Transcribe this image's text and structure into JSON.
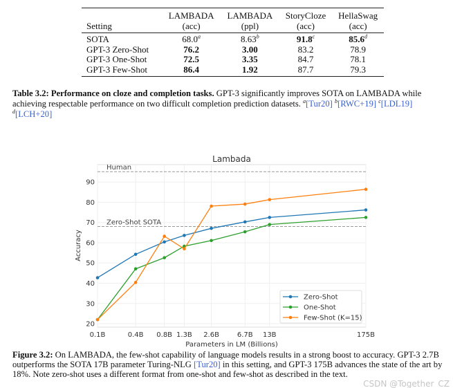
{
  "table": {
    "headers": [
      {
        "top": "",
        "bottom": "Setting"
      },
      {
        "top": "LAMBADA",
        "bottom": "(acc)"
      },
      {
        "top": "LAMBADA",
        "bottom": "(ppl)"
      },
      {
        "top": "StoryCloze",
        "bottom": "(acc)"
      },
      {
        "top": "HellaSwag",
        "bottom": "(acc)"
      }
    ],
    "rows": [
      {
        "setting": "SOTA",
        "cells": [
          {
            "v": "68.0",
            "sup": "a",
            "bold": false
          },
          {
            "v": "8.63",
            "sup": "b",
            "bold": false
          },
          {
            "v": "91.8",
            "sup": "c",
            "bold": true
          },
          {
            "v": "85.6",
            "sup": "d",
            "bold": true
          }
        ]
      },
      {
        "setting": "GPT-3 Zero-Shot",
        "cells": [
          {
            "v": "76.2",
            "bold": true
          },
          {
            "v": "3.00",
            "bold": true
          },
          {
            "v": "83.2",
            "bold": false
          },
          {
            "v": "78.9",
            "bold": false
          }
        ]
      },
      {
        "setting": "GPT-3 One-Shot",
        "cells": [
          {
            "v": "72.5",
            "bold": true
          },
          {
            "v": "3.35",
            "bold": true
          },
          {
            "v": "84.7",
            "bold": false
          },
          {
            "v": "78.1",
            "bold": false
          }
        ]
      },
      {
        "setting": "GPT-3 Few-Shot",
        "cells": [
          {
            "v": "86.4",
            "bold": true
          },
          {
            "v": "1.92",
            "bold": true
          },
          {
            "v": "87.7",
            "bold": false
          },
          {
            "v": "79.3",
            "bold": false
          }
        ]
      }
    ]
  },
  "table_caption": {
    "label": "Table 3.2: Performance on cloze and completion tasks.",
    "text": " GPT-3 significantly improves SOTA on LAMBADA while achieving respectable performance on two difficult completion prediction datasets. ",
    "refs": [
      {
        "sup": "a",
        "text": "[Tur20]"
      },
      {
        "sup": "b",
        "text": "[RWC+19]"
      },
      {
        "sup": "c",
        "text": "[LDL19]"
      },
      {
        "sup": "d",
        "text": "[LCH+20]"
      }
    ]
  },
  "chart_data": {
    "type": "line",
    "title": "Lambada",
    "xlabel": "Parameters in LM (Billions)",
    "ylabel": "Accuracy",
    "x_scale": "log",
    "x": [
      0.125,
      0.35,
      0.76,
      1.3,
      2.7,
      6.7,
      13,
      175
    ],
    "x_tick_labels": [
      "0.1B",
      "0.4B",
      "0.8B",
      "1.3B",
      "2.6B",
      "6.7B",
      "13B",
      "175B"
    ],
    "y_ticks": [
      20,
      30,
      40,
      50,
      60,
      70,
      80,
      90
    ],
    "ylim": [
      18.3,
      98.6
    ],
    "grid": true,
    "legend_placement": "lower-right",
    "series": [
      {
        "name": "Zero-Shot",
        "color": "#1f77b4",
        "values": [
          42.7,
          54.3,
          60.4,
          63.6,
          67.1,
          70.3,
          72.5,
          76.2
        ]
      },
      {
        "name": "One-Shot",
        "color": "#2ca02c",
        "values": [
          22.0,
          47.1,
          52.6,
          58.3,
          61.1,
          65.4,
          69.0,
          72.5
        ]
      },
      {
        "name": "Few-Shot (K=15)",
        "color": "#ff7f0e",
        "values": [
          22.0,
          40.4,
          63.2,
          57.0,
          78.1,
          79.1,
          81.3,
          86.4
        ]
      }
    ],
    "reference_lines": [
      {
        "label": "Human",
        "y": 95.1,
        "color": "#999999"
      },
      {
        "label": "Zero-Shot SOTA",
        "y": 68.0,
        "color": "#999999"
      }
    ]
  },
  "figure_caption": {
    "label": "Figure 3.2:",
    "text1": " On LAMBADA, the few-shot capability of language models results in a strong boost to accuracy. GPT-3 2.7B outperforms the SOTA 17B parameter Turing-NLG ",
    "ref": "[Tur20]",
    "text2": " in this setting, and GPT-3 175B advances the state of the art by 18%. Note zero-shot uses a different format from one-shot and few-shot as described in the text."
  },
  "watermark": "CSDN @Together_CZ"
}
